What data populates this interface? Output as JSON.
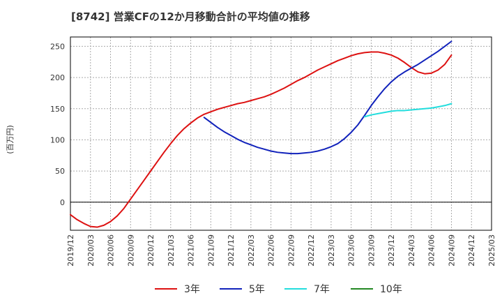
{
  "chart_data": {
    "type": "line",
    "title": "[8742]  営業CFの12か月移動合計の平均値の推移",
    "ylabel": "(百万円)",
    "xlabel": "",
    "ylim": [
      -45,
      265
    ],
    "yticks": [
      0,
      50,
      100,
      150,
      200,
      250
    ],
    "xticks": [
      "2019/12",
      "2020/03",
      "2020/06",
      "2020/09",
      "2020/12",
      "2021/03",
      "2021/06",
      "2021/09",
      "2021/12",
      "2022/03",
      "2022/06",
      "2022/09",
      "2022/12",
      "2023/03",
      "2023/06",
      "2023/09",
      "2023/12",
      "2024/03",
      "2024/06",
      "2024/09",
      "2024/12",
      "2025/03"
    ],
    "grid": true,
    "legend_position": "bottom",
    "series": [
      {
        "name": "3年",
        "color": "#dd1111",
        "points": [
          [
            "2019/12",
            -20
          ],
          [
            "2020/01",
            -28
          ],
          [
            "2020/02",
            -34
          ],
          [
            "2020/03",
            -39
          ],
          [
            "2020/04",
            -40
          ],
          [
            "2020/05",
            -37
          ],
          [
            "2020/06",
            -31
          ],
          [
            "2020/07",
            -22
          ],
          [
            "2020/08",
            -10
          ],
          [
            "2020/09",
            5
          ],
          [
            "2020/10",
            20
          ],
          [
            "2020/11",
            35
          ],
          [
            "2020/12",
            50
          ],
          [
            "2021/01",
            65
          ],
          [
            "2021/02",
            80
          ],
          [
            "2021/03",
            94
          ],
          [
            "2021/04",
            107
          ],
          [
            "2021/05",
            118
          ],
          [
            "2021/06",
            127
          ],
          [
            "2021/07",
            135
          ],
          [
            "2021/08",
            141
          ],
          [
            "2021/09",
            145
          ],
          [
            "2021/10",
            149
          ],
          [
            "2021/11",
            152
          ],
          [
            "2021/12",
            155
          ],
          [
            "2022/01",
            158
          ],
          [
            "2022/02",
            160
          ],
          [
            "2022/03",
            163
          ],
          [
            "2022/04",
            166
          ],
          [
            "2022/05",
            169
          ],
          [
            "2022/06",
            173
          ],
          [
            "2022/07",
            178
          ],
          [
            "2022/08",
            183
          ],
          [
            "2022/09",
            189
          ],
          [
            "2022/10",
            195
          ],
          [
            "2022/11",
            200
          ],
          [
            "2022/12",
            206
          ],
          [
            "2023/01",
            212
          ],
          [
            "2023/02",
            217
          ],
          [
            "2023/03",
            222
          ],
          [
            "2023/04",
            227
          ],
          [
            "2023/05",
            231
          ],
          [
            "2023/06",
            235
          ],
          [
            "2023/07",
            238
          ],
          [
            "2023/08",
            240
          ],
          [
            "2023/09",
            241
          ],
          [
            "2023/10",
            241
          ],
          [
            "2023/11",
            239
          ],
          [
            "2023/12",
            236
          ],
          [
            "2024/01",
            231
          ],
          [
            "2024/02",
            224
          ],
          [
            "2024/03",
            216
          ],
          [
            "2024/04",
            209
          ],
          [
            "2024/05",
            206
          ],
          [
            "2024/06",
            207
          ],
          [
            "2024/07",
            212
          ],
          [
            "2024/08",
            221
          ],
          [
            "2024/09",
            236
          ]
        ]
      },
      {
        "name": "5年",
        "color": "#1122bb",
        "points": [
          [
            "2021/08",
            136
          ],
          [
            "2021/09",
            128
          ],
          [
            "2021/10",
            120
          ],
          [
            "2021/11",
            113
          ],
          [
            "2021/12",
            107
          ],
          [
            "2022/01",
            101
          ],
          [
            "2022/02",
            96
          ],
          [
            "2022/03",
            92
          ],
          [
            "2022/04",
            88
          ],
          [
            "2022/05",
            85
          ],
          [
            "2022/06",
            82
          ],
          [
            "2022/07",
            80
          ],
          [
            "2022/08",
            79
          ],
          [
            "2022/09",
            78
          ],
          [
            "2022/10",
            78
          ],
          [
            "2022/11",
            79
          ],
          [
            "2022/12",
            80
          ],
          [
            "2023/01",
            82
          ],
          [
            "2023/02",
            85
          ],
          [
            "2023/03",
            89
          ],
          [
            "2023/04",
            94
          ],
          [
            "2023/05",
            102
          ],
          [
            "2023/06",
            112
          ],
          [
            "2023/07",
            124
          ],
          [
            "2023/08",
            139
          ],
          [
            "2023/09",
            155
          ],
          [
            "2023/10",
            169
          ],
          [
            "2023/11",
            182
          ],
          [
            "2023/12",
            193
          ],
          [
            "2024/01",
            202
          ],
          [
            "2024/02",
            209
          ],
          [
            "2024/03",
            215
          ],
          [
            "2024/04",
            221
          ],
          [
            "2024/05",
            228
          ],
          [
            "2024/06",
            235
          ],
          [
            "2024/07",
            242
          ],
          [
            "2024/08",
            250
          ],
          [
            "2024/09",
            258
          ]
        ]
      },
      {
        "name": "7年",
        "color": "#22dddd",
        "points": [
          [
            "2023/08",
            137
          ],
          [
            "2023/09",
            140
          ],
          [
            "2023/10",
            142
          ],
          [
            "2023/11",
            144
          ],
          [
            "2023/12",
            146
          ],
          [
            "2024/01",
            147
          ],
          [
            "2024/02",
            147
          ],
          [
            "2024/03",
            148
          ],
          [
            "2024/04",
            149
          ],
          [
            "2024/05",
            150
          ],
          [
            "2024/06",
            151
          ],
          [
            "2024/07",
            153
          ],
          [
            "2024/08",
            155
          ],
          [
            "2024/09",
            158
          ]
        ]
      },
      {
        "name": "10年",
        "color": "#228822",
        "points": []
      }
    ]
  }
}
